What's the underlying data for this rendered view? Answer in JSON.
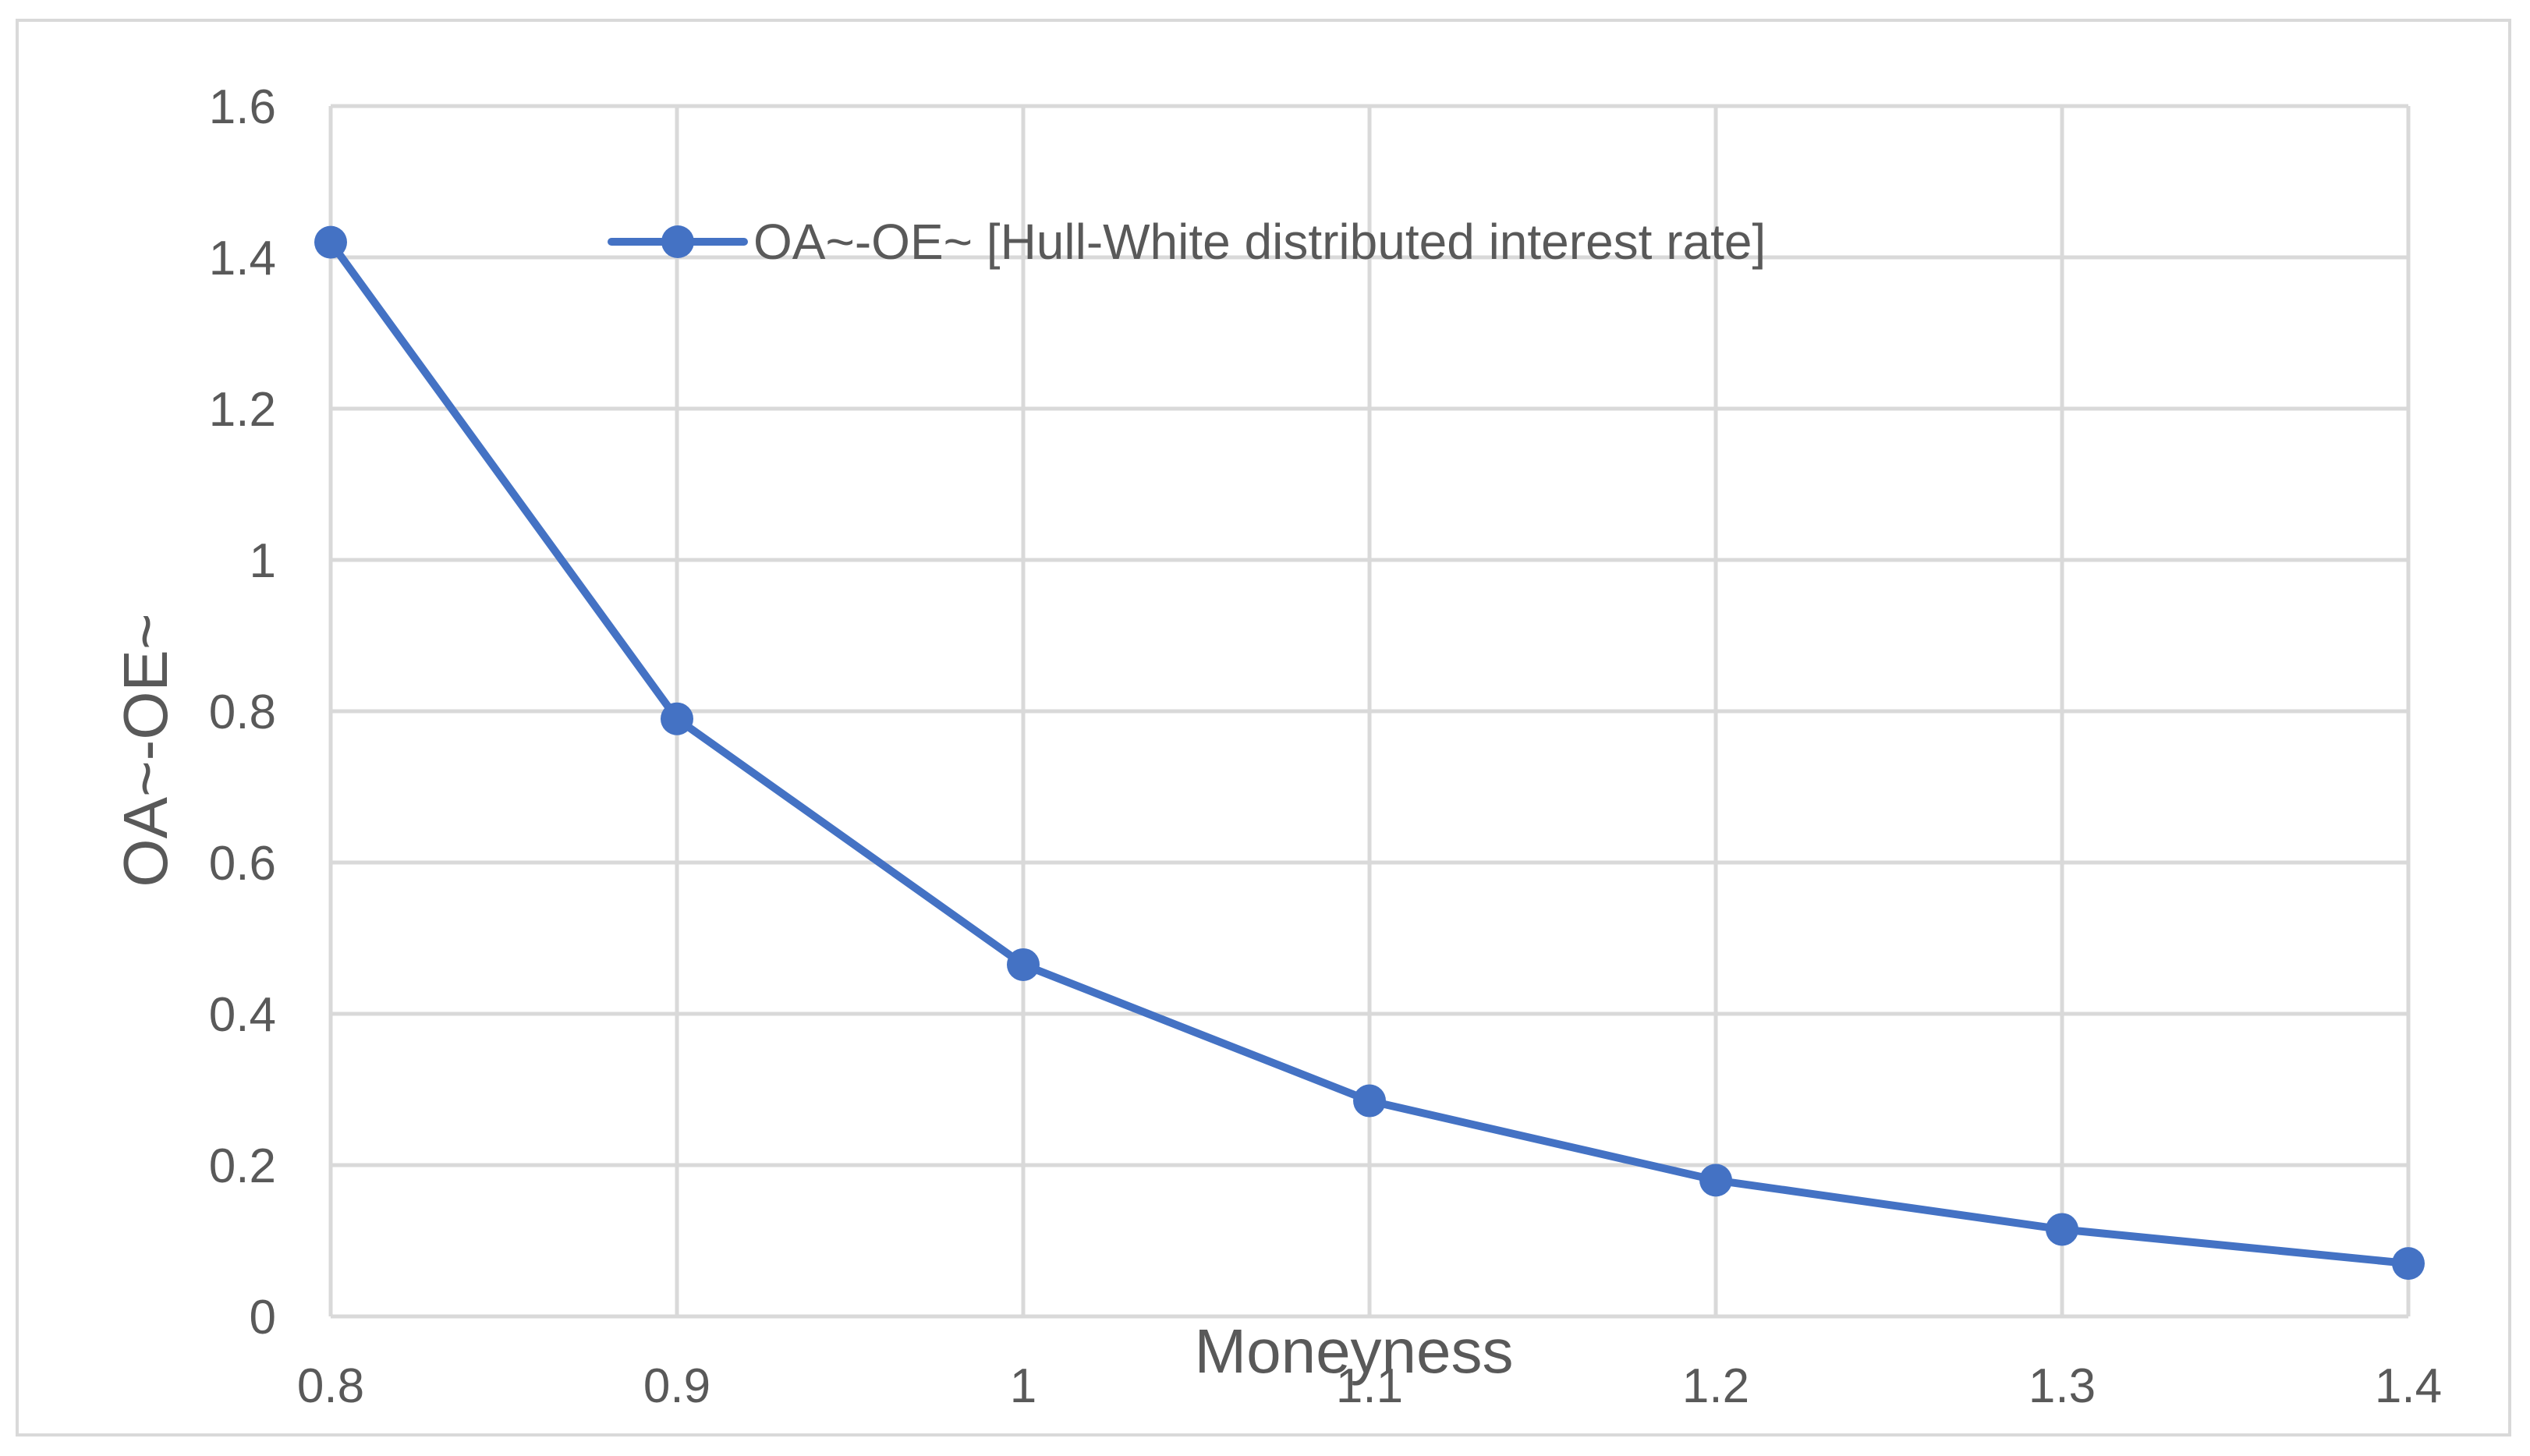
{
  "chart_data": {
    "type": "line",
    "title": "",
    "xlabel": "Moneyness",
    "ylabel": "OA~-OE~",
    "x": [
      0.8,
      0.9,
      1,
      1.1,
      1.2,
      1.3,
      1.4
    ],
    "x_ticks": [
      "0.8",
      "0.9",
      "1",
      "1.1",
      "1.2",
      "1.3",
      "1.4"
    ],
    "y_ticks": [
      "0",
      "0.2",
      "0.4",
      "0.6",
      "0.8",
      "1",
      "1.2",
      "1.4",
      "1.6"
    ],
    "xlim": [
      0.8,
      1.4
    ],
    "ylim": [
      0,
      1.6
    ],
    "grid": true,
    "legend_position": "top",
    "series": [
      {
        "name": "OA~-OE~ [Hull-White distributed interest rate]",
        "color": "#4472c4",
        "marker": "circle",
        "values": [
          1.42,
          0.79,
          0.465,
          0.285,
          0.18,
          0.115,
          0.07
        ]
      }
    ]
  }
}
